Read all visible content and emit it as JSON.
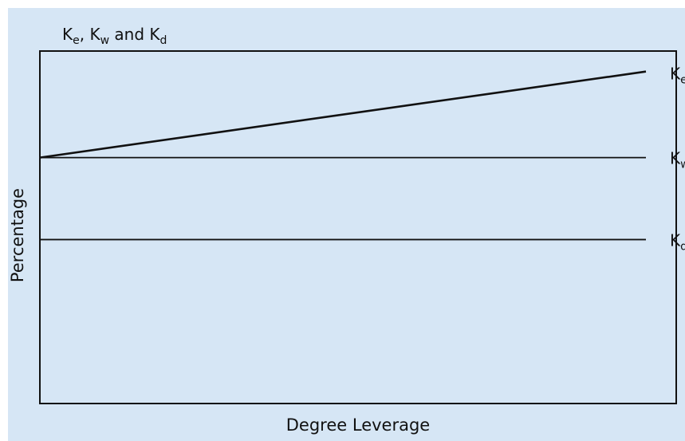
{
  "chart_data": {
    "type": "line",
    "title_parts": [
      {
        "base": "K",
        "sub": "e"
      },
      {
        "text": ", "
      },
      {
        "base": "K",
        "sub": "w"
      },
      {
        "text": " and "
      },
      {
        "base": "K",
        "sub": "d"
      }
    ],
    "xlabel": "Degree Leverage",
    "ylabel": "Percentage",
    "x": [
      0,
      1
    ],
    "series": [
      {
        "base": "K",
        "sub": "e",
        "values": [
          2.7,
          3.75
        ],
        "line_width": "thick"
      },
      {
        "base": "K",
        "sub": "w",
        "values": [
          2.7,
          2.7
        ],
        "line_width": "thin"
      },
      {
        "base": "K",
        "sub": "d",
        "values": [
          1.7,
          1.7
        ],
        "line_width": "thin"
      }
    ],
    "xlim": [
      0,
      1.05
    ],
    "ylim": [
      -0.3,
      4.0
    ],
    "grid": false,
    "ticks_visible": false
  },
  "colors": {
    "background": "#d6e6f5",
    "plot_background": "#d6e6f5",
    "line": "#111111",
    "frame": "#111111"
  }
}
